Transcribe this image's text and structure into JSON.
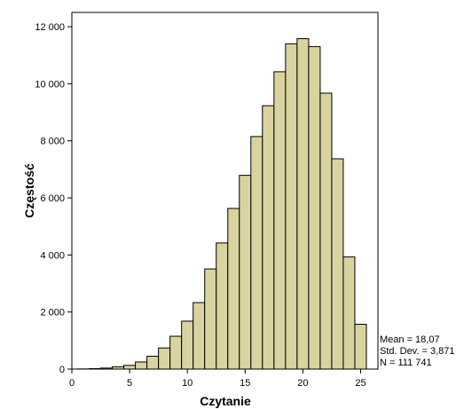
{
  "chart_data": {
    "type": "bar",
    "subtype": "histogram",
    "bin_width": 1,
    "x_start": 0.5,
    "bins": [
      {
        "center": 1,
        "value": 5
      },
      {
        "center": 2,
        "value": 15
      },
      {
        "center": 3,
        "value": 35
      },
      {
        "center": 4,
        "value": 80
      },
      {
        "center": 5,
        "value": 130
      },
      {
        "center": 6,
        "value": 250
      },
      {
        "center": 7,
        "value": 450
      },
      {
        "center": 8,
        "value": 740
      },
      {
        "center": 9,
        "value": 1150
      },
      {
        "center": 10,
        "value": 1680
      },
      {
        "center": 11,
        "value": 2330
      },
      {
        "center": 12,
        "value": 3510
      },
      {
        "center": 13,
        "value": 4420
      },
      {
        "center": 14,
        "value": 5630
      },
      {
        "center": 15,
        "value": 6790
      },
      {
        "center": 16,
        "value": 8150
      },
      {
        "center": 17,
        "value": 9230
      },
      {
        "center": 18,
        "value": 10420
      },
      {
        "center": 19,
        "value": 11400
      },
      {
        "center": 20,
        "value": 11580
      },
      {
        "center": 21,
        "value": 11300
      },
      {
        "center": 22,
        "value": 9670
      },
      {
        "center": 23,
        "value": 7370
      },
      {
        "center": 24,
        "value": 3930
      },
      {
        "center": 25,
        "value": 1570
      }
    ],
    "xlabel": "Czytanie",
    "ylabel": "Częstość",
    "xlim": [
      0,
      26.5
    ],
    "ylim": [
      0,
      12500
    ],
    "x_ticks": [
      {
        "value": 0,
        "label": "0"
      },
      {
        "value": 5,
        "label": "5"
      },
      {
        "value": 10,
        "label": "10"
      },
      {
        "value": 15,
        "label": "15"
      },
      {
        "value": 20,
        "label": "20"
      },
      {
        "value": 25,
        "label": "25"
      }
    ],
    "y_ticks": [
      {
        "value": 0,
        "label": "0"
      },
      {
        "value": 2000,
        "label": "2 000"
      },
      {
        "value": 4000,
        "label": "4 000"
      },
      {
        "value": 6000,
        "label": "6 000"
      },
      {
        "value": 8000,
        "label": "8 000"
      },
      {
        "value": 10000,
        "label": "10 000"
      },
      {
        "value": 12000,
        "label": "12 000"
      }
    ],
    "grid": false,
    "statistics": {
      "mean": "Mean = 18,07",
      "std_dev": "Std. Dev. = 3,871",
      "n": "N = 111 741"
    },
    "colors": {
      "bar_fill": "#D9D3A0",
      "bar_stroke": "#000000",
      "axis": "#000000",
      "background": "#FFFFFF"
    }
  }
}
